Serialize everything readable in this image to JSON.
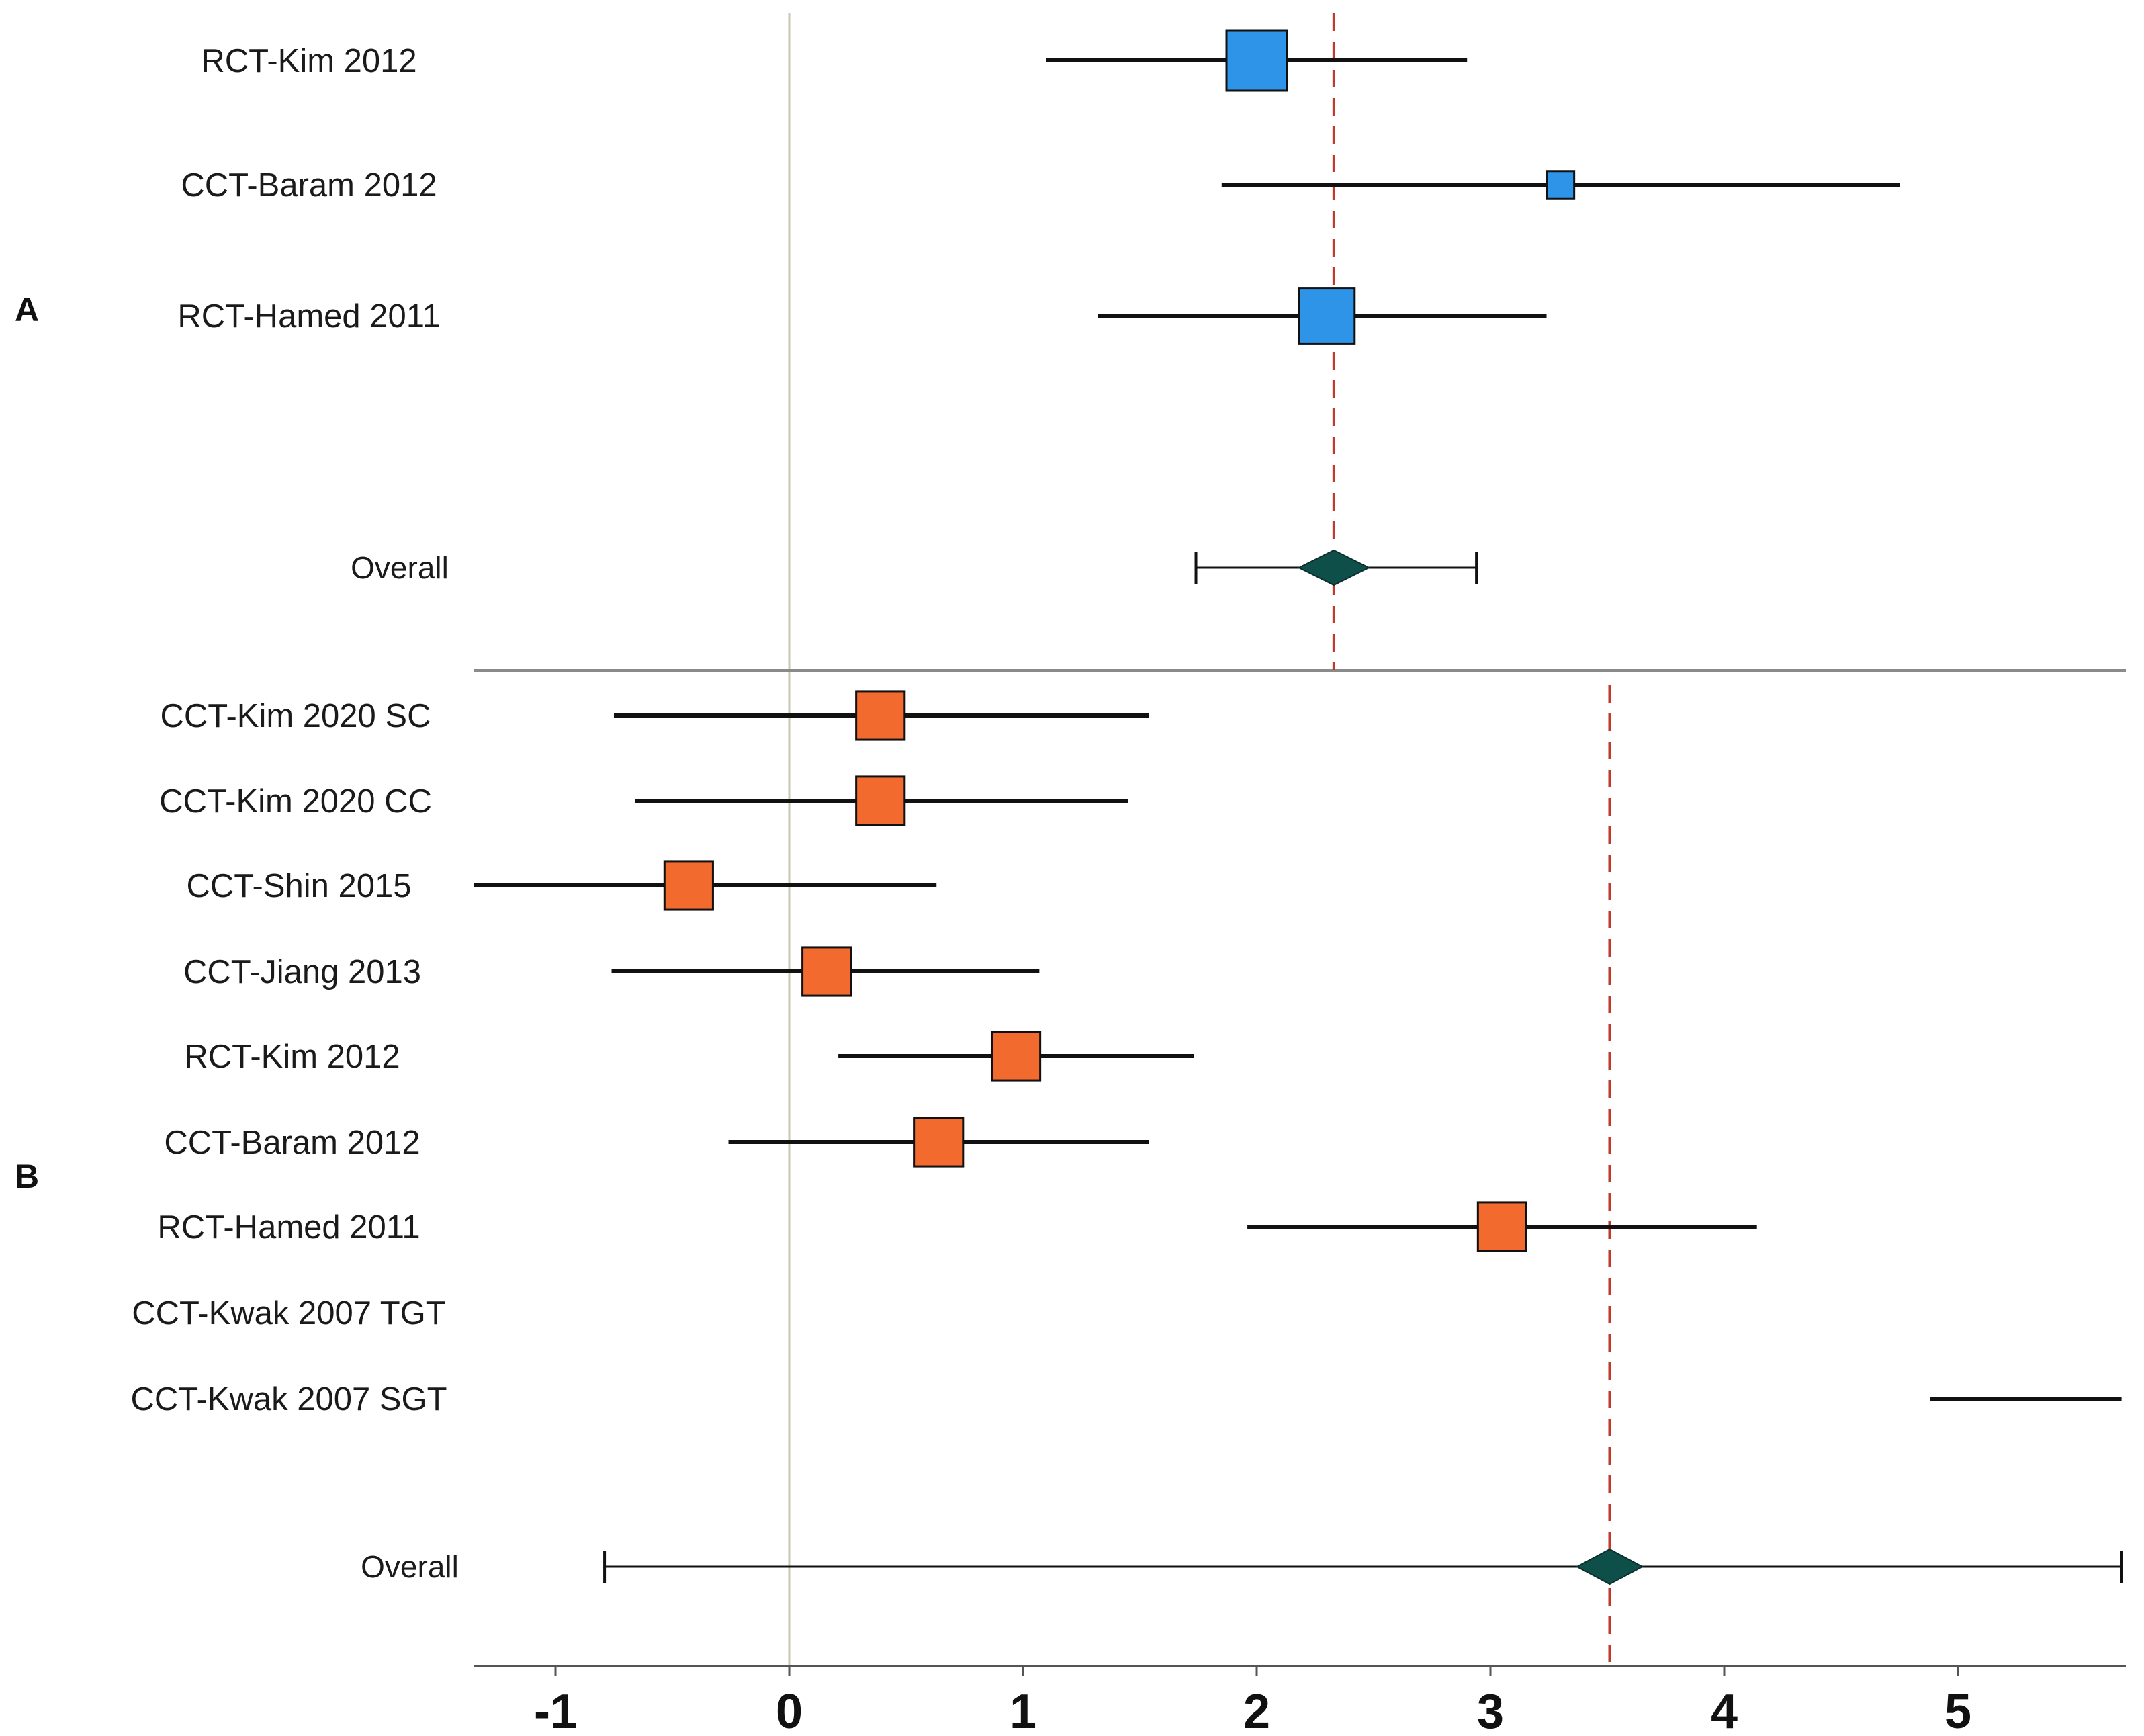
{
  "chart_data": {
    "type": "forest",
    "x_axis": {
      "ticks": [
        -1,
        0,
        1,
        2,
        3,
        4,
        5
      ],
      "tick_labels": [
        "-1",
        "0",
        "1",
        "2",
        "3",
        "4",
        "5"
      ],
      "range": [
        -1.35,
        5.7
      ]
    },
    "null_line_x": 0,
    "panels": [
      {
        "label": "A",
        "color": "#2E94E8",
        "pooled_line_x": 2.33,
        "studies": [
          {
            "name": "RCT-Kim 2012",
            "estimate": 2.0,
            "ci_low": 1.1,
            "ci_high": 2.9,
            "weight": 1.0
          },
          {
            "name": "CCT-Baram 2012",
            "estimate": 3.3,
            "ci_low": 1.85,
            "ci_high": 4.75,
            "weight": 0.45
          },
          {
            "name": "RCT-Hamed 2011",
            "estimate": 2.3,
            "ci_low": 1.32,
            "ci_high": 3.24,
            "weight": 0.92
          }
        ],
        "overall": {
          "label": "Overall",
          "estimate": 2.33,
          "ci_low": 1.74,
          "ci_high": 2.94,
          "diamond_half_width": 0.15
        }
      },
      {
        "label": "B",
        "color": "#F26A2E",
        "pooled_line_x": 3.51,
        "studies": [
          {
            "name": "CCT-Kim 2020 SC",
            "estimate": 0.39,
            "ci_low": -0.75,
            "ci_high": 1.54,
            "weight": 0.88
          },
          {
            "name": "CCT-Kim 2020 CC",
            "estimate": 0.39,
            "ci_low": -0.66,
            "ci_high": 1.45,
            "weight": 0.88
          },
          {
            "name": "CCT-Shin 2015",
            "estimate": -0.43,
            "ci_low": -1.35,
            "ci_high": 0.63,
            "weight": 0.88
          },
          {
            "name": "CCT-Jiang 2013",
            "estimate": 0.16,
            "ci_low": -0.76,
            "ci_high": 1.07,
            "weight": 0.88
          },
          {
            "name": "RCT-Kim 2012",
            "estimate": 0.97,
            "ci_low": 0.21,
            "ci_high": 1.73,
            "weight": 0.88
          },
          {
            "name": "CCT-Baram 2012",
            "estimate": 0.64,
            "ci_low": -0.26,
            "ci_high": 1.54,
            "weight": 0.88
          },
          {
            "name": "RCT-Hamed 2011",
            "estimate": 3.05,
            "ci_low": 1.96,
            "ci_high": 4.14,
            "weight": 0.88
          },
          {
            "name": "CCT-Kwak 2007 TGT"
          },
          {
            "name": "CCT-Kwak 2007 SGT",
            "ci_low": 4.88,
            "ci_high": 5.7
          }
        ],
        "overall": {
          "label": "Overall",
          "estimate": 3.51,
          "ci_low": -0.79,
          "ci_high": 5.7,
          "diamond_half_width": 0.14
        }
      }
    ]
  }
}
